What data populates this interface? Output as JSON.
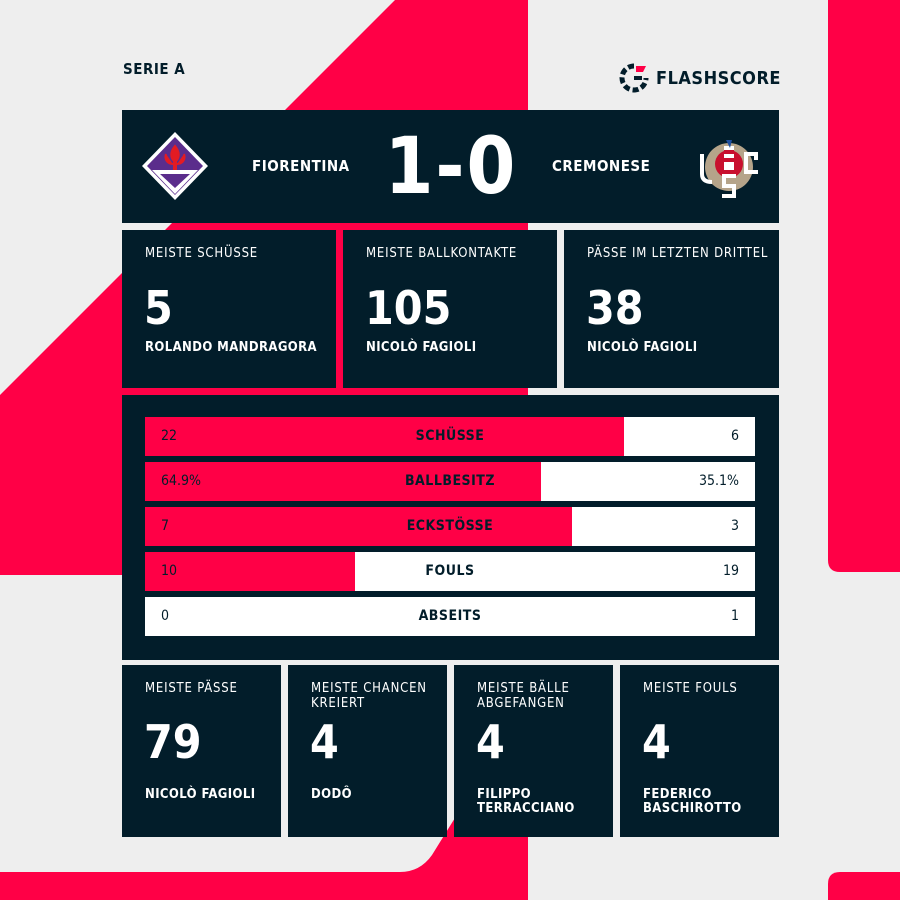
{
  "league": "SERIE A",
  "brand": {
    "name": "FLASHSCORE",
    "color": "#ff0046"
  },
  "colors": {
    "accent": "#ff0046",
    "panel": "#021d2a",
    "background": "#eeeeee"
  },
  "match": {
    "home": "FIORENTINA",
    "away": "CREMONESE",
    "score": "1-0",
    "home_logo": "fiorentina-crest",
    "away_logo": "cremonese-crest"
  },
  "top_cards": [
    {
      "label": "MEISTE SCHÜSSE",
      "value": "5",
      "player": "ROLANDO MANDRAGORA"
    },
    {
      "label": "MEISTE BALLKONTAKTE",
      "value": "105",
      "player": "NICOLÒ FAGIOLI"
    },
    {
      "label": "PÄSSE IM LETZTEN DRITTEL",
      "value": "38",
      "player": "NICOLÒ FAGIOLI"
    }
  ],
  "stats": [
    {
      "name": "SCHÜSSE",
      "home": "22",
      "away": "6",
      "home_share": 0.786
    },
    {
      "name": "BALLBESITZ",
      "home": "64.9%",
      "away": "35.1%",
      "home_share": 0.649
    },
    {
      "name": "ECKSTÖSSE",
      "home": "7",
      "away": "3",
      "home_share": 0.7
    },
    {
      "name": "FOULS",
      "home": "10",
      "away": "19",
      "home_share": 0.345
    },
    {
      "name": "ABSEITS",
      "home": "0",
      "away": "1",
      "home_share": 0
    }
  ],
  "bottom_cards": [
    {
      "label": "MEISTE PÄSSE",
      "value": "79",
      "player": "NICOLÒ FAGIOLI"
    },
    {
      "label": "MEISTE CHANCEN KREIERT",
      "value": "4",
      "player": "DODÔ"
    },
    {
      "label": "MEISTE BÄLLE ABGEFANGEN",
      "value": "4",
      "player": "FILIPPO TERRACCIANO"
    },
    {
      "label": "MEISTE FOULS",
      "value": "4",
      "player": "FEDERICO BASCHIROTTO"
    }
  ]
}
